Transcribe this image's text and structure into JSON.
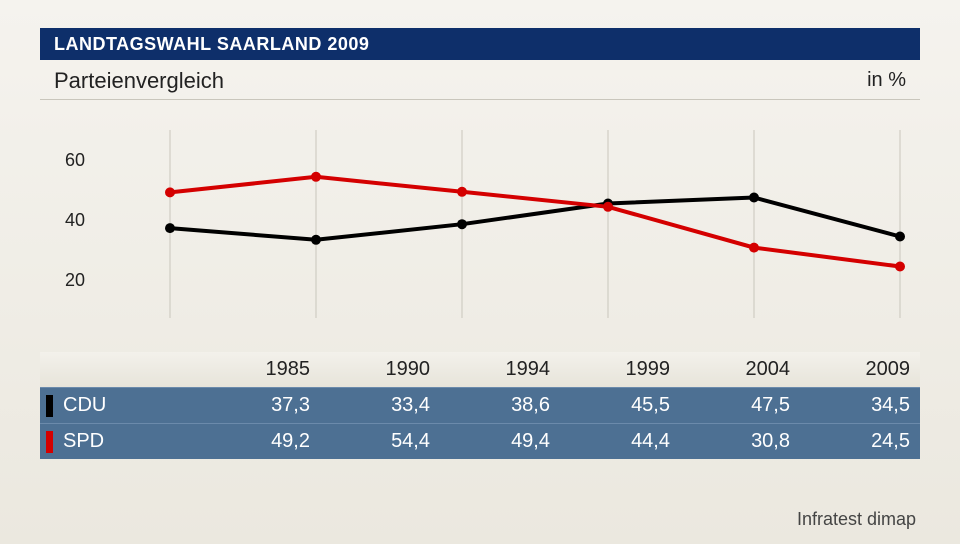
{
  "header": {
    "title": "LANDTAGSWAHL SAARLAND 2009"
  },
  "subtitle": {
    "left": "Parteienvergleich",
    "right": "in %"
  },
  "chart": {
    "type": "line",
    "x_labels": [
      "1985",
      "1990",
      "1994",
      "1999",
      "2004",
      "2009"
    ],
    "y_ticks": [
      20,
      40,
      60
    ],
    "ylim": [
      10,
      70
    ],
    "grid_color": "#c9c6bc",
    "background_color": "transparent",
    "marker_radius": 5,
    "line_width": 4,
    "series": [
      {
        "name": "CDU",
        "color": "#000000",
        "values": [
          37.3,
          33.4,
          38.6,
          45.5,
          47.5,
          34.5
        ]
      },
      {
        "name": "SPD",
        "color": "#d40000",
        "values": [
          49.2,
          54.4,
          49.4,
          44.4,
          30.8,
          24.5
        ]
      }
    ]
  },
  "table": {
    "columns": [
      "1985",
      "1990",
      "1994",
      "1999",
      "2004",
      "2009"
    ],
    "rows": [
      {
        "party": "CDU",
        "swatch": "#000000",
        "cells": [
          "37,3",
          "33,4",
          "38,6",
          "45,5",
          "47,5",
          "34,5"
        ]
      },
      {
        "party": "SPD",
        "swatch": "#d40000",
        "cells": [
          "49,2",
          "54,4",
          "49,4",
          "44,4",
          "30,8",
          "24,5"
        ]
      }
    ],
    "header_bg": "#ece9e0",
    "body_bg": "#4d7093",
    "text_color": "#ffffff"
  },
  "attribution": "Infratest dimap"
}
